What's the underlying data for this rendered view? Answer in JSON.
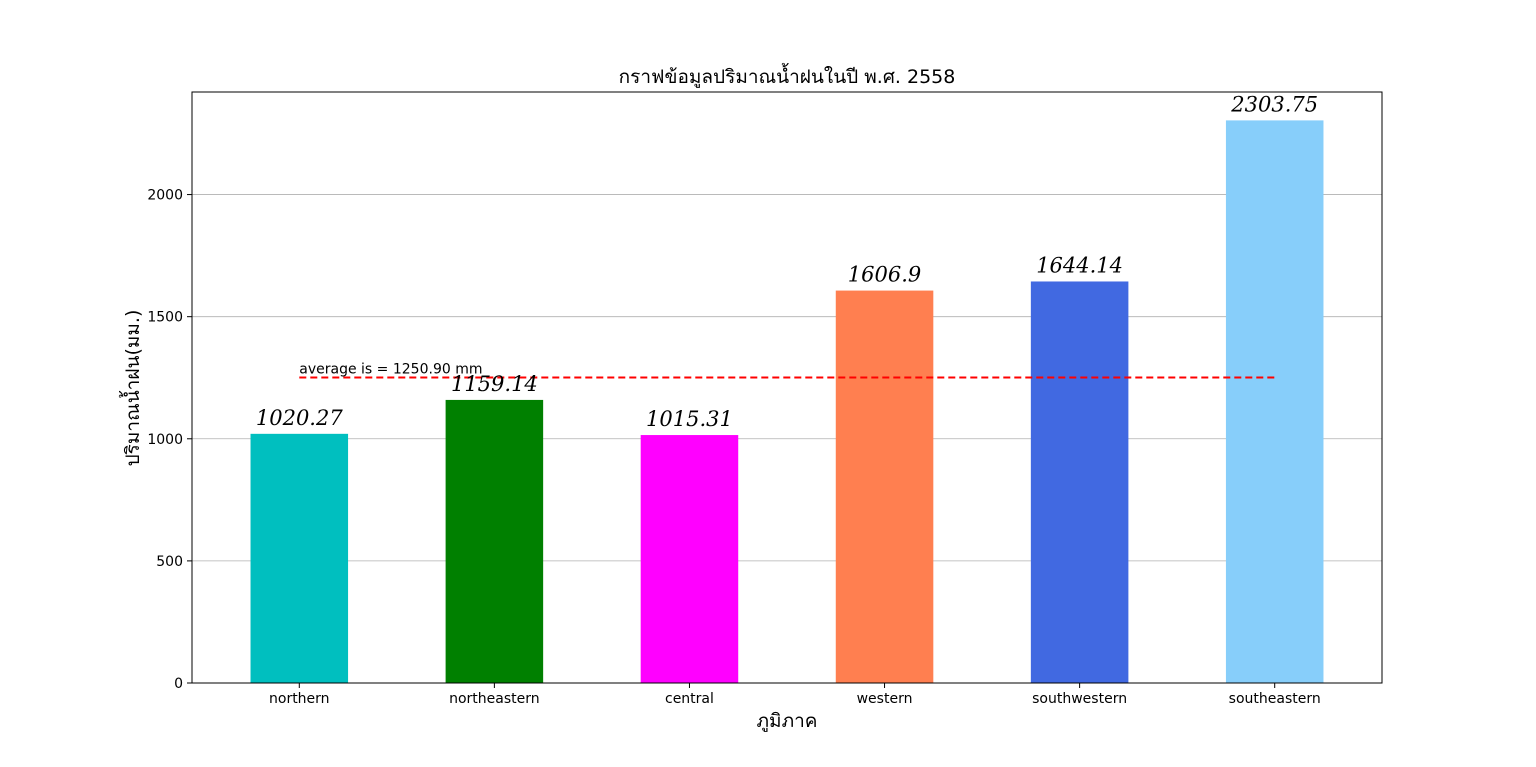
{
  "chart_data": {
    "type": "bar",
    "title": "กราฟข้อมูลปริมาณน้ำฝนในปี พ.ศ. 2558",
    "xlabel": "ภูมิภาค",
    "ylabel": "ปริมาณน้ำฝน(มม.)",
    "categories": [
      "northern",
      "northeastern",
      "central",
      "western",
      "southwestern",
      "southeastern"
    ],
    "values": [
      1020.27,
      1159.14,
      1015.31,
      1606.9,
      1644.14,
      2303.75
    ],
    "value_labels": [
      "1020.27",
      "1159.14",
      "1015.31",
      "1606.9",
      "1644.14",
      "2303.75"
    ],
    "colors": [
      "#00bfbf",
      "#008000",
      "#ff00ff",
      "#ff7f50",
      "#4169e1",
      "#87cefa"
    ],
    "ylim": [
      0,
      2420
    ],
    "yticks": [
      0,
      500,
      1000,
      1500,
      2000
    ],
    "grid": "horizontal",
    "average": {
      "value": 1250.9,
      "label": "average is = 1250.90 mm",
      "color": "#ff0000",
      "style": "dashed"
    }
  }
}
